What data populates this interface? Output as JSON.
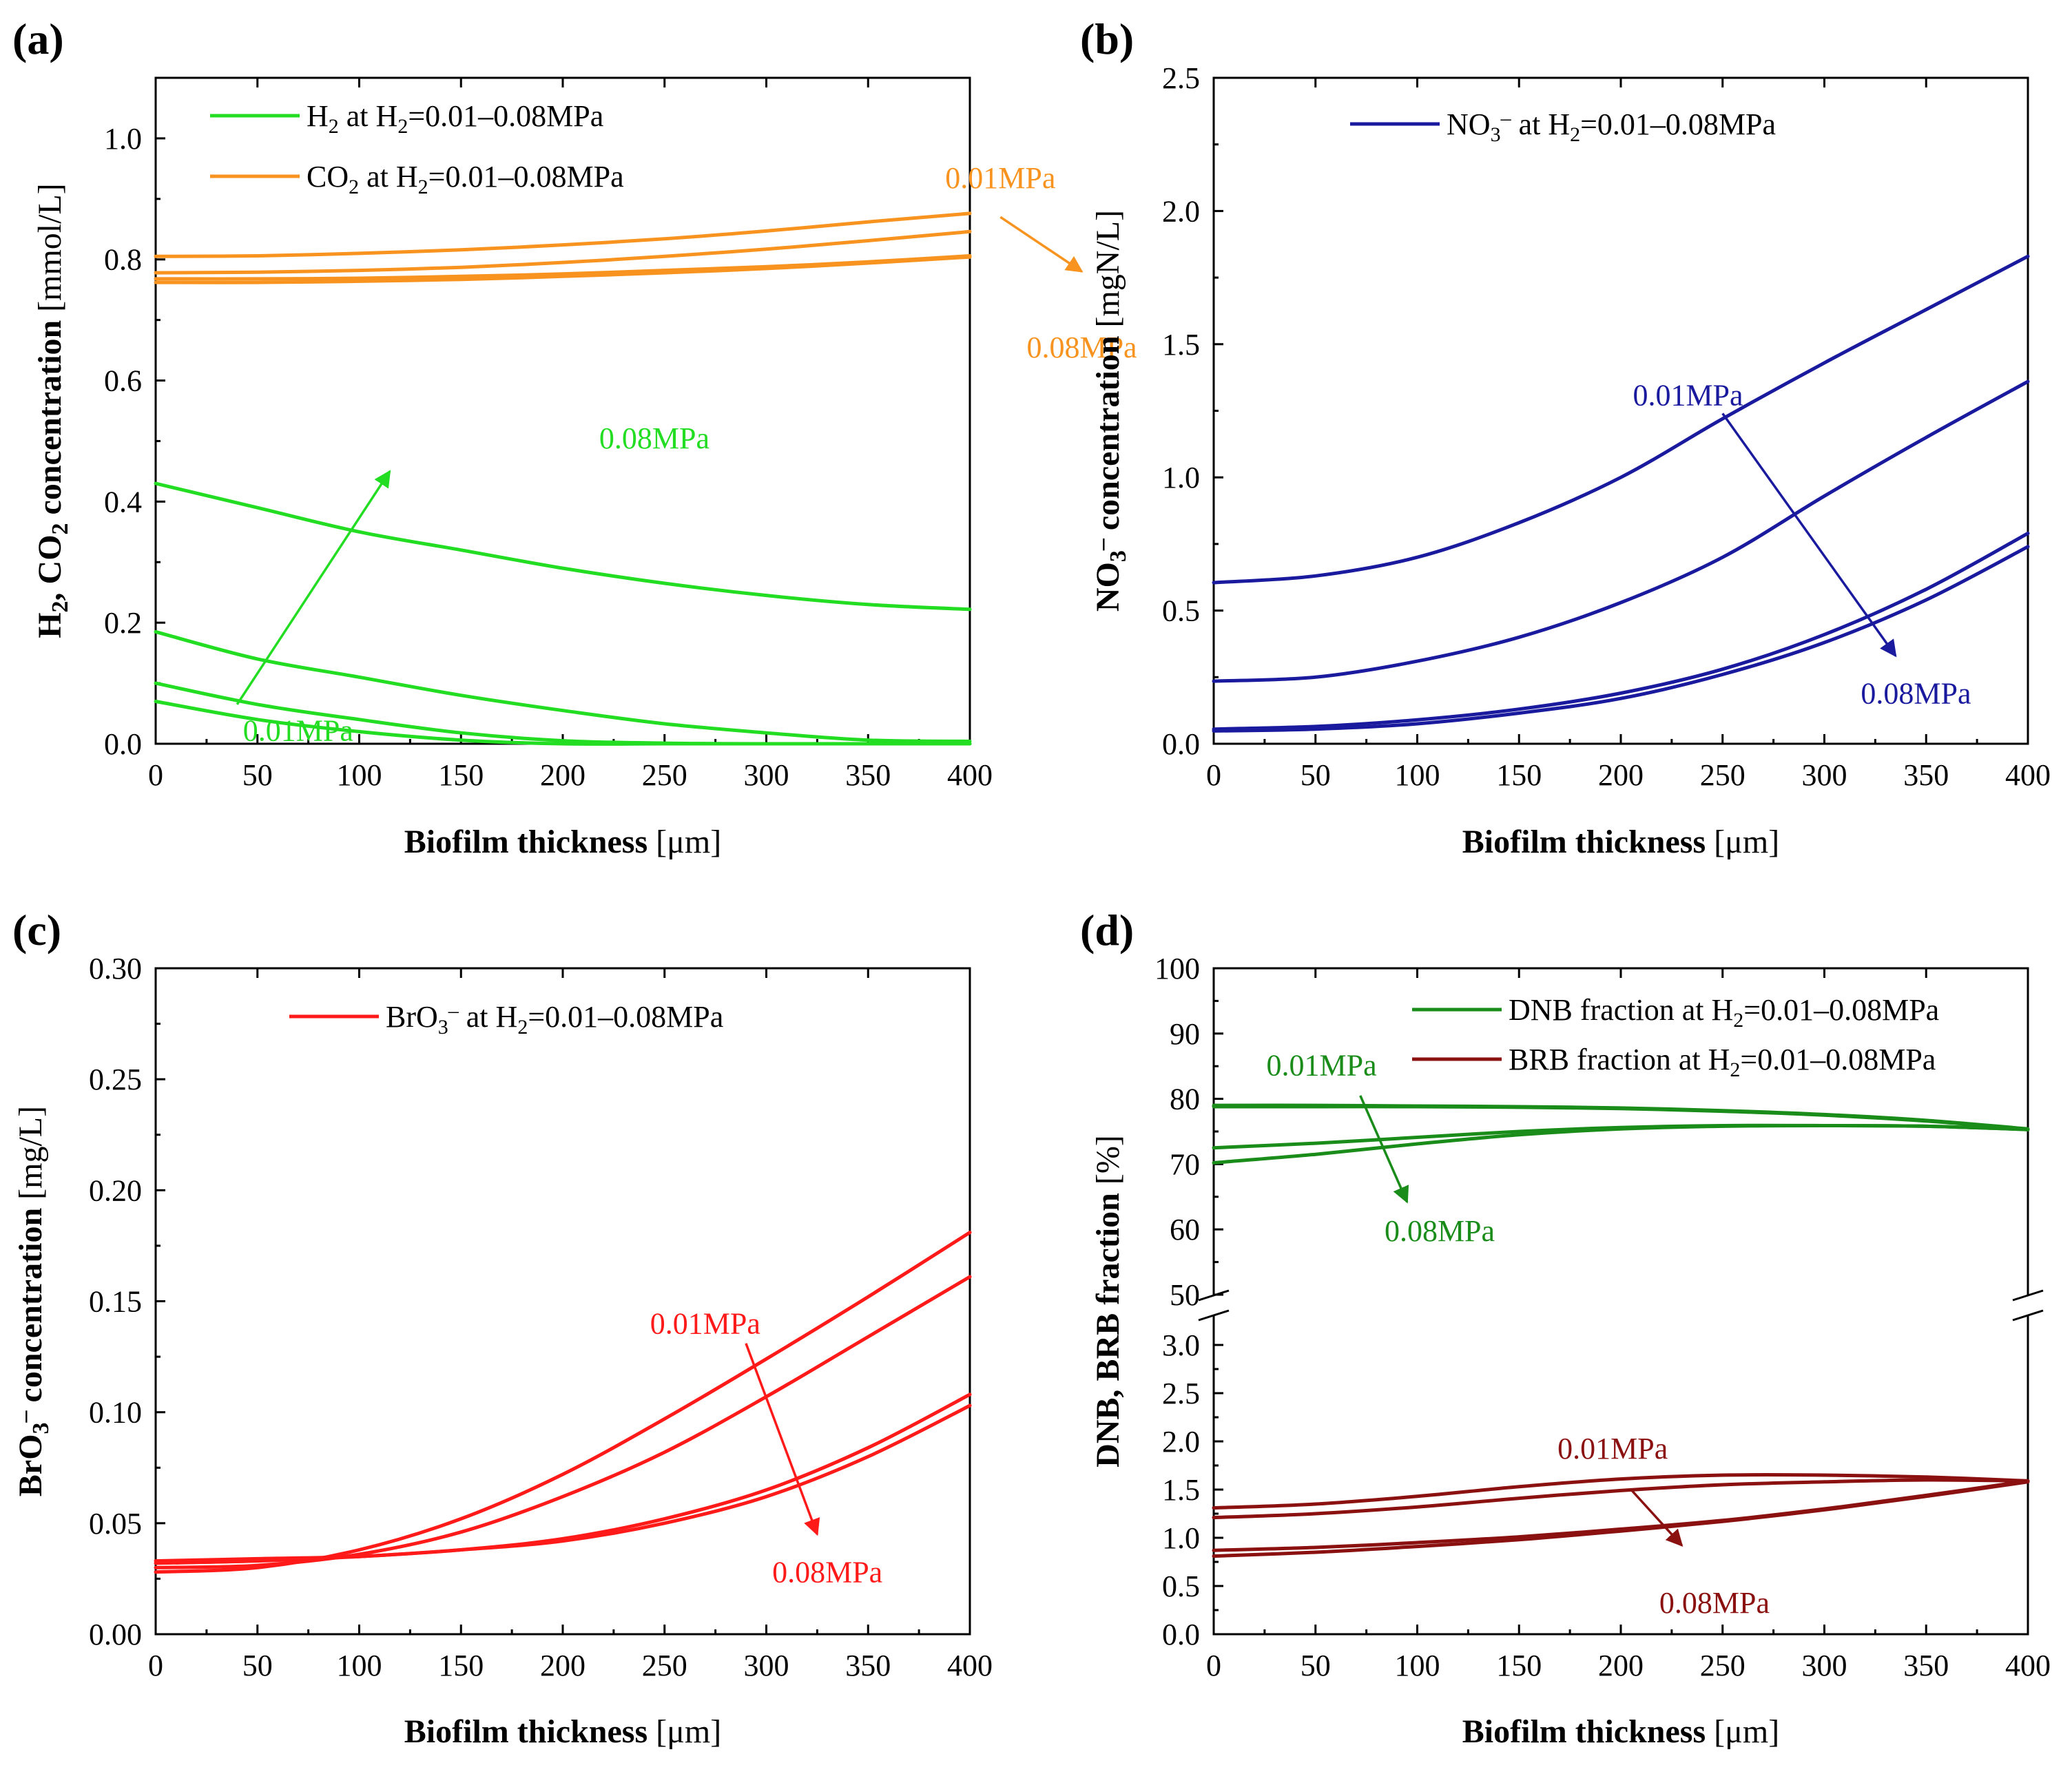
{
  "chart_data": [
    {
      "type": "line",
      "panel": "(a)",
      "xlabel_bold": "Biofilm thickness",
      "xlabel_unit": "[μm]",
      "ylabel_bold": "H₂, CO₂ concentration",
      "ylabel_unit": "[mmol/L]",
      "xlim": [
        0,
        400
      ],
      "ylim": [
        0,
        1.1
      ],
      "xticks": [
        0,
        50,
        100,
        150,
        200,
        250,
        300,
        350,
        400
      ],
      "yticks": [
        0.0,
        0.2,
        0.4,
        0.6,
        0.8,
        1.0
      ],
      "ytick_labels": [
        "0.0",
        "0.2",
        "0.4",
        "0.6",
        "0.8",
        "1.0"
      ],
      "legend": [
        {
          "label": "H₂ at H₂=0.01–0.08MPa",
          "color": "#22dd22"
        },
        {
          "label": "CO₂ at H₂=0.01–0.08MPa",
          "color": "#f7931e"
        }
      ],
      "x": [
        0,
        50,
        100,
        150,
        200,
        250,
        300,
        350,
        400
      ],
      "series": [
        {
          "name": "H2 0.08MPa",
          "color": "#22dd22",
          "values": [
            0.43,
            0.39,
            0.35,
            0.32,
            0.29,
            0.265,
            0.245,
            0.23,
            0.222
          ]
        },
        {
          "name": "H2 0.04MPa",
          "color": "#22dd22",
          "values": [
            0.185,
            0.14,
            0.11,
            0.08,
            0.055,
            0.033,
            0.018,
            0.006,
            0.004
          ]
        },
        {
          "name": "H2 0.02MPa",
          "color": "#22dd22",
          "values": [
            0.1,
            0.065,
            0.04,
            0.018,
            0.005,
            0.001,
            0.0,
            0.0,
            0.0
          ]
        },
        {
          "name": "H2 0.01MPa",
          "color": "#22dd22",
          "values": [
            0.07,
            0.04,
            0.02,
            0.006,
            0.0,
            0.0,
            0.0,
            0.0,
            0.0
          ]
        },
        {
          "name": "CO2 0.01MPa",
          "color": "#f7931e",
          "values": [
            0.805,
            0.806,
            0.81,
            0.816,
            0.824,
            0.834,
            0.847,
            0.862,
            0.876
          ]
        },
        {
          "name": "CO2 0.02MPa",
          "color": "#f7931e",
          "values": [
            0.778,
            0.779,
            0.782,
            0.787,
            0.795,
            0.805,
            0.817,
            0.831,
            0.846
          ]
        },
        {
          "name": "CO2 0.04MPa",
          "color": "#f7931e",
          "values": [
            0.768,
            0.768,
            0.769,
            0.772,
            0.776,
            0.782,
            0.788,
            0.796,
            0.806
          ]
        },
        {
          "name": "CO2 0.08MPa",
          "color": "#f7931e",
          "values": [
            0.762,
            0.762,
            0.764,
            0.767,
            0.772,
            0.778,
            0.785,
            0.794,
            0.804
          ]
        }
      ],
      "annotations": [
        {
          "text": "0.01MPa",
          "x": 70,
          "y": 0.022,
          "color": "#22dd22"
        },
        {
          "text": "0.08MPa",
          "x": 245,
          "y": 0.505,
          "color": "#22dd22"
        },
        {
          "text": "0.01MPa",
          "x": 415,
          "y": 0.935,
          "color": "#f7931e"
        },
        {
          "text": "0.08MPa",
          "x": 455,
          "y": 0.655,
          "color": "#f7931e"
        }
      ],
      "arrows": [
        {
          "from": [
            40,
            0.065
          ],
          "to": [
            115,
            0.45
          ],
          "color": "#22dd22"
        },
        {
          "from": [
            415,
            0.87
          ],
          "to": [
            455,
            0.78
          ],
          "color": "#f7931e"
        }
      ]
    },
    {
      "type": "line",
      "panel": "(b)",
      "xlabel_bold": "Biofilm thickness",
      "xlabel_unit": "[μm]",
      "ylabel_bold": "NO₃⁻ concentration",
      "ylabel_unit": "[mgN/L]",
      "xlim": [
        0,
        400
      ],
      "ylim": [
        0,
        2.5
      ],
      "xticks": [
        0,
        50,
        100,
        150,
        200,
        250,
        300,
        350,
        400
      ],
      "yticks": [
        0.0,
        0.5,
        1.0,
        1.5,
        2.0,
        2.5
      ],
      "ytick_labels": [
        "0.0",
        "0.5",
        "1.0",
        "1.5",
        "2.0",
        "2.5"
      ],
      "legend": [
        {
          "label": "NO₃⁻ at H₂=0.01–0.08MPa",
          "color": "#1a1a9e"
        }
      ],
      "x": [
        0,
        50,
        100,
        150,
        200,
        250,
        300,
        350,
        400
      ],
      "series": [
        {
          "name": "NO3 0.01MPa",
          "color": "#1a1a9e",
          "values": [
            0.605,
            0.63,
            0.7,
            0.83,
            1.0,
            1.22,
            1.43,
            1.63,
            1.83
          ]
        },
        {
          "name": "NO3 0.02MPa",
          "color": "#1a1a9e",
          "values": [
            0.235,
            0.25,
            0.31,
            0.4,
            0.53,
            0.7,
            0.93,
            1.15,
            1.36
          ]
        },
        {
          "name": "NO3 0.04MPa",
          "color": "#1a1a9e",
          "values": [
            0.055,
            0.065,
            0.09,
            0.13,
            0.19,
            0.28,
            0.41,
            0.58,
            0.79
          ]
        },
        {
          "name": "NO3 0.08MPa",
          "color": "#1a1a9e",
          "values": [
            0.048,
            0.055,
            0.075,
            0.115,
            0.17,
            0.26,
            0.38,
            0.54,
            0.74
          ]
        }
      ],
      "annotations": [
        {
          "text": "0.01MPa",
          "x": 233,
          "y": 1.31,
          "color": "#1a1a9e"
        },
        {
          "text": "0.08MPa",
          "x": 345,
          "y": 0.19,
          "color": "#1a1a9e"
        }
      ],
      "arrows": [
        {
          "from": [
            250,
            1.24
          ],
          "to": [
            335,
            0.33
          ],
          "color": "#1a1a9e"
        }
      ]
    },
    {
      "type": "line",
      "panel": "(c)",
      "xlabel_bold": "Biofilm thickness",
      "xlabel_unit": "[μm]",
      "ylabel_bold": "BrO₃⁻ concentration",
      "ylabel_unit": "[mg/L]",
      "xlim": [
        0,
        400
      ],
      "ylim": [
        0,
        0.3
      ],
      "xticks": [
        0,
        50,
        100,
        150,
        200,
        250,
        300,
        350,
        400
      ],
      "yticks": [
        0.0,
        0.05,
        0.1,
        0.15,
        0.2,
        0.25,
        0.3
      ],
      "ytick_labels": [
        "0.00",
        "0.05",
        "0.10",
        "0.15",
        "0.20",
        "0.25",
        "0.30"
      ],
      "legend": [
        {
          "label": "BrO₃⁻ at H₂=0.01–0.08MPa",
          "color": "#ff1a1a"
        }
      ],
      "x": [
        0,
        50,
        100,
        150,
        200,
        250,
        300,
        350,
        400
      ],
      "series": [
        {
          "name": "BrO3 0.01MPa",
          "color": "#ff1a1a",
          "values": [
            0.028,
            0.03,
            0.038,
            0.052,
            0.072,
            0.097,
            0.124,
            0.152,
            0.181
          ]
        },
        {
          "name": "BrO3 0.02MPa",
          "color": "#ff1a1a",
          "values": [
            0.03,
            0.031,
            0.036,
            0.046,
            0.062,
            0.082,
            0.107,
            0.134,
            0.161
          ]
        },
        {
          "name": "BrO3 0.04MPa",
          "color": "#ff1a1a",
          "values": [
            0.032,
            0.033,
            0.035,
            0.038,
            0.043,
            0.052,
            0.065,
            0.084,
            0.108
          ]
        },
        {
          "name": "BrO3 0.08MPa",
          "color": "#ff1a1a",
          "values": [
            0.033,
            0.034,
            0.035,
            0.038,
            0.042,
            0.05,
            0.062,
            0.08,
            0.103
          ]
        }
      ],
      "annotations": [
        {
          "text": "0.01MPa",
          "x": 270,
          "y": 0.14,
          "color": "#ff1a1a"
        },
        {
          "text": "0.08MPa",
          "x": 330,
          "y": 0.028,
          "color": "#ff1a1a"
        }
      ],
      "arrows": [
        {
          "from": [
            290,
            0.131
          ],
          "to": [
            325,
            0.045
          ],
          "color": "#ff1a1a"
        }
      ]
    },
    {
      "type": "line",
      "panel": "(d)",
      "xlabel_bold": "Biofilm thickness",
      "xlabel_unit": "[μm]",
      "ylabel_bold": "DNB, BRB fraction",
      "ylabel_unit": "[%]",
      "xlim": [
        0,
        400
      ],
      "broken_y_axis": true,
      "ylim_upper": [
        50,
        100
      ],
      "ylim_lower": [
        0,
        3.3
      ],
      "xticks": [
        0,
        50,
        100,
        150,
        200,
        250,
        300,
        350,
        400
      ],
      "yticks_upper": [
        50,
        60,
        70,
        80,
        90,
        100
      ],
      "ytick_labels_upper": [
        "50",
        "60",
        "70",
        "80",
        "90",
        "100"
      ],
      "yticks_lower": [
        0.0,
        0.5,
        1.0,
        1.5,
        2.0,
        2.5,
        3.0
      ],
      "ytick_labels_lower": [
        "0.0",
        "0.5",
        "1.0",
        "1.5",
        "2.0",
        "2.5",
        "3.0"
      ],
      "legend": [
        {
          "label": "DNB fraction at H₂=0.01–0.08MPa",
          "color": "#1a8c1a"
        },
        {
          "label": "BRB fraction at H₂=0.01–0.08MPa",
          "color": "#8b1010"
        }
      ],
      "x": [
        0,
        50,
        100,
        150,
        200,
        250,
        300,
        350,
        400
      ],
      "series": [
        {
          "name": "DNB 0.01MPa",
          "color": "#1a8c1a",
          "axis": "upper",
          "values": [
            78.8,
            78.8,
            78.8,
            78.7,
            78.5,
            78.1,
            77.5,
            76.6,
            75.3
          ]
        },
        {
          "name": "DNB 0.02MPa",
          "color": "#1a8c1a",
          "axis": "upper",
          "values": [
            79.0,
            79.0,
            78.9,
            78.8,
            78.6,
            78.2,
            77.6,
            76.7,
            75.4
          ]
        },
        {
          "name": "DNB 0.04MPa",
          "color": "#1a8c1a",
          "axis": "upper",
          "values": [
            72.5,
            73.2,
            74.1,
            75.0,
            75.6,
            75.9,
            75.9,
            75.8,
            75.3
          ]
        },
        {
          "name": "DNB 0.08MPa",
          "color": "#1a8c1a",
          "axis": "upper",
          "values": [
            70.2,
            71.5,
            73.1,
            74.5,
            75.4,
            75.8,
            75.9,
            75.8,
            75.3
          ]
        },
        {
          "name": "BRB 0.01MPa",
          "color": "#8b1010",
          "axis": "lower",
          "values": [
            1.31,
            1.35,
            1.43,
            1.53,
            1.61,
            1.65,
            1.65,
            1.63,
            1.59
          ]
        },
        {
          "name": "BRB 0.02MPa",
          "color": "#8b1010",
          "axis": "lower",
          "values": [
            1.21,
            1.25,
            1.32,
            1.41,
            1.49,
            1.55,
            1.58,
            1.6,
            1.59
          ]
        },
        {
          "name": "BRB 0.04MPa",
          "color": "#8b1010",
          "axis": "lower",
          "values": [
            0.87,
            0.9,
            0.95,
            1.01,
            1.09,
            1.18,
            1.3,
            1.44,
            1.59
          ]
        },
        {
          "name": "BRB 0.08MPa",
          "color": "#8b1010",
          "axis": "lower",
          "values": [
            0.81,
            0.85,
            0.91,
            0.98,
            1.07,
            1.17,
            1.29,
            1.43,
            1.58
          ]
        }
      ],
      "annotations": [
        {
          "text": "0.01MPa",
          "x": 53,
          "y": 85.2,
          "axis": "upper",
          "color": "#1a8c1a"
        },
        {
          "text": "0.08MPa",
          "x": 111,
          "y": 59.8,
          "axis": "upper",
          "color": "#1a8c1a"
        },
        {
          "text": "0.01MPa",
          "x": 196,
          "y": 1.93,
          "axis": "lower",
          "color": "#8b1010"
        },
        {
          "text": "0.08MPa",
          "x": 246,
          "y": 0.33,
          "axis": "lower",
          "color": "#8b1010"
        }
      ],
      "arrows": [
        {
          "from": [
            72,
            80.5
          ],
          "to": [
            95,
            64.2
          ],
          "axis": "upper",
          "color": "#1a8c1a"
        },
        {
          "from": [
            205,
            1.5
          ],
          "to": [
            230,
            0.92
          ],
          "axis": "lower",
          "color": "#8b1010"
        }
      ]
    }
  ]
}
